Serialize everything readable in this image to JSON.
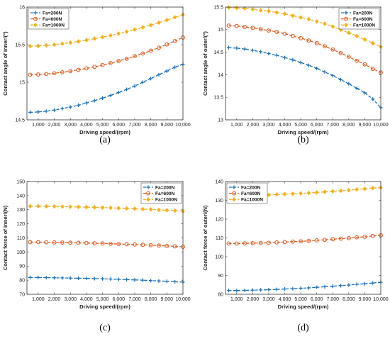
{
  "chart_data": [
    {
      "type": "line",
      "panel_label": "(a)",
      "xlabel": "Driving speed/(rpm)",
      "ylabel": "Contact angle of inner/(°)",
      "xlim": [
        300,
        10000
      ],
      "ylim": [
        14.5,
        16
      ],
      "xticks": [
        1000,
        2000,
        3000,
        4000,
        5000,
        6000,
        7000,
        8000,
        9000,
        10000
      ],
      "xtick_labels": [
        "1,000",
        "2,000",
        "3,000",
        "4,000",
        "5,000",
        "6,000",
        "7,000",
        "8,000",
        "9,000",
        "10,000"
      ],
      "yticks": [
        14.5,
        15,
        15.5,
        16
      ],
      "ytick_labels": [
        "14.5",
        "15",
        "15.5",
        "16"
      ],
      "legend_position": "top-left",
      "x": [
        500,
        1000,
        1500,
        2000,
        2500,
        3000,
        3500,
        4000,
        4500,
        5000,
        5500,
        6000,
        6500,
        7000,
        7500,
        8000,
        8500,
        9000,
        9500,
        10000
      ],
      "series": [
        {
          "name": "Fa=200N",
          "color": "#1f6fb5",
          "marker": "plus",
          "values": [
            14.6,
            14.605,
            14.615,
            14.63,
            14.65,
            14.67,
            14.695,
            14.725,
            14.755,
            14.79,
            14.825,
            14.865,
            14.905,
            14.95,
            15.0,
            15.05,
            15.1,
            15.15,
            15.2,
            15.24
          ]
        },
        {
          "name": "Fa=600N",
          "color": "#e35e24",
          "marker": "circle",
          "values": [
            15.1,
            15.103,
            15.11,
            15.12,
            15.133,
            15.148,
            15.165,
            15.185,
            15.205,
            15.228,
            15.255,
            15.283,
            15.313,
            15.347,
            15.383,
            15.42,
            15.46,
            15.503,
            15.548,
            15.595
          ]
        },
        {
          "name": "Fa=1000N",
          "color": "#f0b11e",
          "marker": "diamond",
          "values": [
            15.48,
            15.483,
            15.49,
            15.5,
            15.513,
            15.527,
            15.543,
            15.56,
            15.58,
            15.6,
            15.623,
            15.647,
            15.672,
            15.7,
            15.73,
            15.76,
            15.793,
            15.828,
            15.863,
            15.9
          ]
        }
      ]
    },
    {
      "type": "line",
      "panel_label": "(b)",
      "xlabel": "Driving speed/(rpm)",
      "ylabel": "Contact angle of outer/(°)",
      "xlim": [
        300,
        10000
      ],
      "ylim": [
        13,
        15.5
      ],
      "xticks": [
        1000,
        2000,
        3000,
        4000,
        5000,
        6000,
        7000,
        8000,
        9000,
        10000
      ],
      "xtick_labels": [
        "1,000",
        "2,000",
        "3,000",
        "4,000",
        "5,000",
        "6,000",
        "7,000",
        "8,000",
        "9,000",
        "10,000"
      ],
      "yticks": [
        13,
        13.5,
        14,
        14.5,
        15,
        15.5
      ],
      "ytick_labels": [
        "13",
        "13.5",
        "14",
        "14.5",
        "15",
        "15.5"
      ],
      "legend_position": "top-right",
      "x": [
        500,
        1000,
        1500,
        2000,
        2500,
        3000,
        3500,
        4000,
        4500,
        5000,
        5500,
        6000,
        6500,
        7000,
        7500,
        8000,
        8500,
        9000,
        9500,
        10000
      ],
      "series": [
        {
          "name": "Fa=200N",
          "color": "#1f6fb5",
          "marker": "plus",
          "values": [
            14.6,
            14.59,
            14.57,
            14.54,
            14.51,
            14.47,
            14.43,
            14.38,
            14.33,
            14.27,
            14.21,
            14.14,
            14.06,
            13.98,
            13.89,
            13.8,
            13.7,
            13.6,
            13.46,
            13.27
          ]
        },
        {
          "name": "Fa=600N",
          "color": "#e35e24",
          "marker": "circle",
          "values": [
            15.09,
            15.08,
            15.06,
            15.04,
            15.01,
            14.98,
            14.95,
            14.91,
            14.86,
            14.81,
            14.76,
            14.7,
            14.63,
            14.56,
            14.48,
            14.4,
            14.31,
            14.23,
            14.13,
            14.05
          ]
        },
        {
          "name": "Fa=1000N",
          "color": "#f0b11e",
          "marker": "diamond",
          "values": [
            15.49,
            15.48,
            15.47,
            15.45,
            15.43,
            15.41,
            15.38,
            15.35,
            15.31,
            15.27,
            15.23,
            15.18,
            15.13,
            15.07,
            15.0,
            14.93,
            14.86,
            14.78,
            14.7,
            14.62
          ]
        }
      ]
    },
    {
      "type": "line",
      "panel_label": "(c)",
      "xlabel": "Driving speed/(rpm)",
      "ylabel": "Contact force of inner/(N)",
      "xlim": [
        300,
        10000
      ],
      "ylim": [
        70,
        150
      ],
      "xticks": [
        1000,
        2000,
        3000,
        4000,
        5000,
        6000,
        7000,
        8000,
        9000,
        10000
      ],
      "xtick_labels": [
        "1,000",
        "2,000",
        "3,000",
        "4,000",
        "5,000",
        "6,000",
        "7,000",
        "8,000",
        "9,000",
        "10,000"
      ],
      "yticks": [
        70,
        80,
        90,
        100,
        110,
        120,
        130,
        140,
        150
      ],
      "ytick_labels": [
        "70",
        "80",
        "90",
        "100",
        "110",
        "120",
        "130",
        "140",
        "150"
      ],
      "legend_position": "top-right",
      "x": [
        500,
        1000,
        1500,
        2000,
        2500,
        3000,
        3500,
        4000,
        4500,
        5000,
        5500,
        6000,
        6500,
        7000,
        7500,
        8000,
        8500,
        9000,
        9500,
        10000
      ],
      "series": [
        {
          "name": "Fa=200N",
          "color": "#1f6fb5",
          "marker": "plus",
          "values": [
            81.9,
            81.9,
            81.8,
            81.7,
            81.6,
            81.5,
            81.4,
            81.3,
            81.1,
            81.0,
            80.8,
            80.6,
            80.4,
            80.2,
            80.0,
            79.7,
            79.5,
            79.2,
            78.9,
            78.6
          ]
        },
        {
          "name": "Fa=600N",
          "color": "#e35e24",
          "marker": "circle",
          "values": [
            107.0,
            107.0,
            106.9,
            106.8,
            106.7,
            106.6,
            106.5,
            106.4,
            106.2,
            106.1,
            105.9,
            105.7,
            105.5,
            105.3,
            105.1,
            104.8,
            104.6,
            104.3,
            104.0,
            103.7
          ]
        },
        {
          "name": "Fa=1000N",
          "color": "#f0b11e",
          "marker": "diamond",
          "values": [
            132.5,
            132.5,
            132.4,
            132.3,
            132.2,
            132.1,
            132.0,
            131.8,
            131.7,
            131.5,
            131.3,
            131.1,
            130.9,
            130.7,
            130.4,
            130.2,
            129.9,
            129.6,
            129.3,
            129.0
          ]
        }
      ]
    },
    {
      "type": "line",
      "panel_label": "(d)",
      "xlabel": "Driving speed/(rpm)",
      "ylabel": "Contact force of outer/(N)",
      "xlim": [
        300,
        10000
      ],
      "ylim": [
        80,
        140
      ],
      "xticks": [
        1000,
        2000,
        3000,
        4000,
        5000,
        6000,
        7000,
        8000,
        9000,
        10000
      ],
      "xtick_labels": [
        "1,000",
        "2,000",
        "3,000",
        "4,000",
        "5,000",
        "6,000",
        "7,000",
        "8,000",
        "9,000",
        "10,000"
      ],
      "yticks": [
        80,
        90,
        100,
        110,
        120,
        130,
        140
      ],
      "ytick_labels": [
        "80",
        "90",
        "100",
        "110",
        "120",
        "130",
        "140"
      ],
      "legend_position": "top-left",
      "x": [
        500,
        1000,
        1500,
        2000,
        2500,
        3000,
        3500,
        4000,
        4500,
        5000,
        5500,
        6000,
        6500,
        7000,
        7500,
        8000,
        8500,
        9000,
        9500,
        10000
      ],
      "series": [
        {
          "name": "Fa=200N",
          "color": "#1f6fb5",
          "marker": "plus",
          "values": [
            82.0,
            82.0,
            82.1,
            82.2,
            82.3,
            82.4,
            82.6,
            82.8,
            83.0,
            83.2,
            83.4,
            83.7,
            84.0,
            84.3,
            84.6,
            84.9,
            85.3,
            85.6,
            86.0,
            86.4
          ]
        },
        {
          "name": "Fa=600N",
          "color": "#e35e24",
          "marker": "circle",
          "values": [
            107.0,
            107.0,
            107.1,
            107.2,
            107.3,
            107.4,
            107.6,
            107.8,
            108.0,
            108.2,
            108.4,
            108.7,
            109.0,
            109.3,
            109.6,
            109.9,
            110.3,
            110.6,
            111.0,
            111.4
          ]
        },
        {
          "name": "Fa=1000N",
          "color": "#f0b11e",
          "marker": "diamond",
          "values": [
            132.5,
            132.5,
            132.6,
            132.7,
            132.8,
            132.9,
            133.1,
            133.3,
            133.5,
            133.7,
            133.9,
            134.2,
            134.5,
            134.8,
            135.1,
            135.4,
            135.8,
            136.1,
            136.5,
            136.8
          ]
        }
      ]
    }
  ]
}
